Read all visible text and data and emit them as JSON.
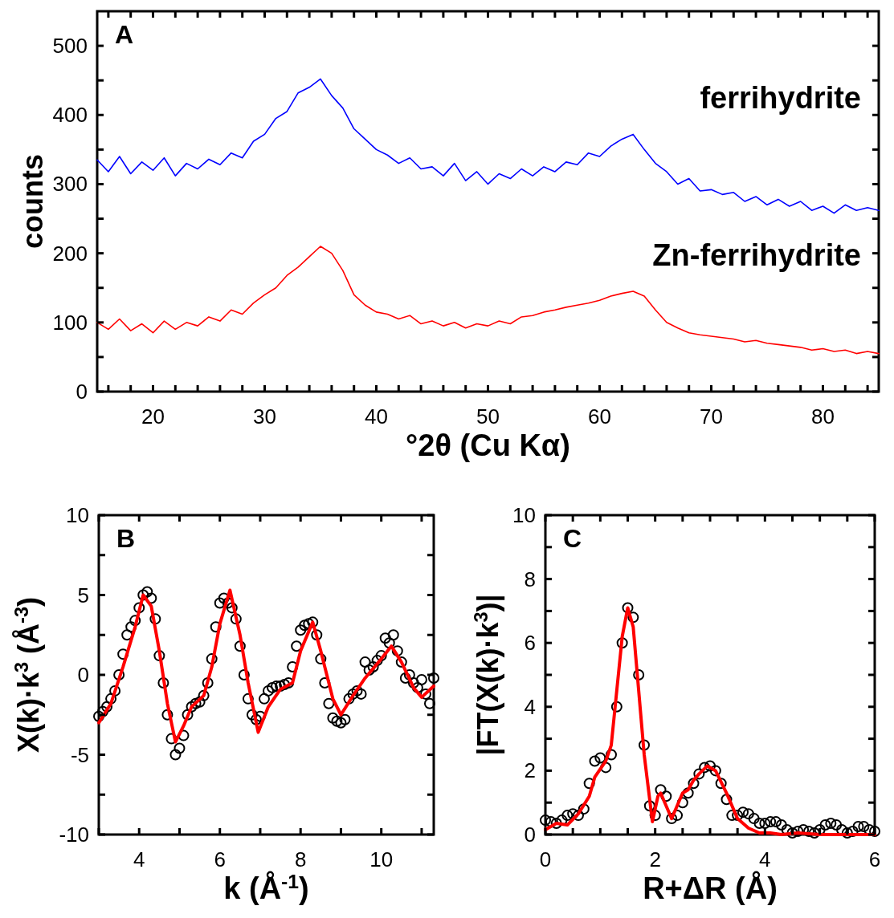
{
  "chart_data": [
    {
      "type": "line",
      "title": "A",
      "xlabel": "°2θ (Cu Kα)",
      "ylabel": "counts",
      "xlim": [
        15,
        85
      ],
      "ylim": [
        0,
        550
      ],
      "xticks": [
        {
          "value": 16,
          "label": null
        },
        {
          "value": 18,
          "label": null
        },
        20,
        {
          "value": 22,
          "label": null
        },
        {
          "value": 24,
          "label": null
        },
        {
          "value": 26,
          "label": null
        },
        {
          "value": 28,
          "label": null
        },
        30,
        {
          "value": 32,
          "label": null
        },
        {
          "value": 34,
          "label": null
        },
        {
          "value": 36,
          "label": null
        },
        {
          "value": 38,
          "label": null
        },
        40,
        {
          "value": 42,
          "label": null
        },
        {
          "value": 44,
          "label": null
        },
        {
          "value": 46,
          "label": null
        },
        {
          "value": 48,
          "label": null
        },
        50,
        {
          "value": 52,
          "label": null
        },
        {
          "value": 54,
          "label": null
        },
        {
          "value": 56,
          "label": null
        },
        {
          "value": 58,
          "label": null
        },
        60,
        {
          "value": 62,
          "label": null
        },
        {
          "value": 64,
          "label": null
        },
        {
          "value": 66,
          "label": null
        },
        {
          "value": 68,
          "label": null
        },
        70,
        {
          "value": 72,
          "label": null
        },
        {
          "value": 74,
          "label": null
        },
        {
          "value": 76,
          "label": null
        },
        {
          "value": 78,
          "label": null
        },
        80,
        {
          "value": 82,
          "label": null
        },
        {
          "value": 84,
          "label": null
        }
      ],
      "yticks": [
        0,
        {
          "value": 50,
          "label": null
        },
        100,
        {
          "value": 150,
          "label": null
        },
        200,
        {
          "value": 250,
          "label": null
        },
        300,
        {
          "value": 350,
          "label": null
        },
        400,
        {
          "value": 450,
          "label": null
        },
        500
      ],
      "x": [
        15,
        16,
        17,
        18,
        19,
        20,
        21,
        22,
        23,
        24,
        25,
        26,
        27,
        28,
        29,
        30,
        31,
        32,
        33,
        34,
        35,
        36,
        37,
        38,
        39,
        40,
        41,
        42,
        43,
        44,
        45,
        46,
        47,
        48,
        49,
        50,
        51,
        52,
        53,
        54,
        55,
        56,
        57,
        58,
        59,
        60,
        61,
        62,
        63,
        64,
        65,
        66,
        67,
        68,
        69,
        70,
        71,
        72,
        73,
        74,
        75,
        76,
        77,
        78,
        79,
        80,
        81,
        82,
        83,
        84,
        85
      ],
      "series": [
        {
          "name": "ferrihydrite",
          "color": "#0000ff",
          "values": [
            335,
            318,
            340,
            315,
            332,
            320,
            338,
            312,
            330,
            322,
            336,
            328,
            345,
            338,
            362,
            372,
            395,
            405,
            432,
            440,
            452,
            428,
            410,
            380,
            365,
            350,
            342,
            330,
            338,
            322,
            325,
            312,
            330,
            305,
            318,
            300,
            315,
            308,
            322,
            312,
            325,
            318,
            332,
            328,
            345,
            340,
            355,
            365,
            372,
            350,
            330,
            318,
            300,
            308,
            290,
            292,
            285,
            288,
            275,
            282,
            270,
            278,
            268,
            275,
            262,
            268,
            258,
            270,
            262,
            266,
            262
          ]
        },
        {
          "name": "Zn-ferrihydrite",
          "color": "#ff0000",
          "values": [
            100,
            90,
            105,
            88,
            98,
            85,
            102,
            90,
            100,
            95,
            108,
            102,
            118,
            112,
            128,
            140,
            150,
            168,
            180,
            195,
            210,
            200,
            175,
            140,
            125,
            115,
            112,
            105,
            110,
            98,
            102,
            95,
            100,
            92,
            98,
            95,
            102,
            98,
            108,
            110,
            115,
            118,
            122,
            125,
            128,
            132,
            138,
            142,
            145,
            138,
            118,
            100,
            92,
            85,
            82,
            80,
            78,
            76,
            72,
            74,
            70,
            68,
            66,
            64,
            60,
            62,
            58,
            60,
            55,
            58,
            55
          ]
        }
      ]
    },
    {
      "type": "scatter",
      "title": "B",
      "xlabel": "k (Å$^{-1}$)",
      "ylabel": "X(k)·k$^{3}$ (Å$^{-3}$)",
      "xlim": [
        3,
        11.3
      ],
      "ylim": [
        -10,
        10
      ],
      "xticks": [
        {
          "value": 3,
          "label": null
        },
        4,
        {
          "value": 5,
          "label": null
        },
        6,
        {
          "value": 7,
          "label": null
        },
        8,
        {
          "value": 9,
          "label": null
        },
        10,
        {
          "value": 11,
          "label": null
        }
      ],
      "yticks": [
        -10,
        {
          "value": -7.5,
          "label": null
        },
        -5,
        {
          "value": -2.5,
          "label": null
        },
        0,
        {
          "value": 2.5,
          "label": null
        },
        5,
        {
          "value": 7.5,
          "label": null
        },
        10
      ],
      "series": [
        {
          "color": "#000000",
          "marker": "circle",
          "x": [
            3.0,
            3.1,
            3.2,
            3.3,
            3.4,
            3.5,
            3.6,
            3.7,
            3.8,
            3.9,
            4.0,
            4.1,
            4.2,
            4.3,
            4.4,
            4.5,
            4.6,
            4.7,
            4.8,
            4.9,
            5.0,
            5.1,
            5.2,
            5.3,
            5.4,
            5.5,
            5.6,
            5.7,
            5.8,
            5.9,
            6.0,
            6.1,
            6.2,
            6.3,
            6.4,
            6.5,
            6.6,
            6.7,
            6.8,
            6.9,
            7.0,
            7.1,
            7.2,
            7.3,
            7.4,
            7.5,
            7.6,
            7.7,
            7.8,
            7.9,
            8.0,
            8.1,
            8.2,
            8.3,
            8.4,
            8.5,
            8.6,
            8.7,
            8.8,
            8.9,
            9.0,
            9.1,
            9.2,
            9.3,
            9.4,
            9.5,
            9.6,
            9.7,
            9.8,
            9.9,
            10.0,
            10.1,
            10.2,
            10.3,
            10.4,
            10.5,
            10.6,
            10.7,
            10.8,
            10.9,
            11.0,
            11.1,
            11.2,
            11.3
          ],
          "values": [
            -2.6,
            -2.3,
            -2.0,
            -1.5,
            -1.0,
            0.0,
            1.3,
            2.5,
            3.0,
            3.4,
            4.2,
            5.0,
            5.2,
            4.8,
            3.5,
            1.2,
            -0.5,
            -2.5,
            -4.0,
            -5.0,
            -4.6,
            -3.8,
            -2.5,
            -2.0,
            -1.8,
            -1.7,
            -1.3,
            -0.5,
            1.0,
            3.0,
            4.5,
            4.8,
            4.5,
            4.2,
            3.5,
            1.8,
            0.0,
            -1.5,
            -2.5,
            -2.8,
            -2.6,
            -1.5,
            -1.0,
            -0.8,
            -0.7,
            -0.7,
            -0.6,
            -0.5,
            0.5,
            1.8,
            2.8,
            3.1,
            3.2,
            3.3,
            2.5,
            1.0,
            -0.5,
            -1.8,
            -2.7,
            -2.9,
            -3.0,
            -2.8,
            -1.5,
            -1.2,
            -1.0,
            -1.2,
            0.8,
            0.3,
            0.5,
            0.9,
            1.2,
            2.3,
            2.0,
            2.5,
            1.5,
            0.8,
            -0.2,
            0.0,
            -0.5,
            -0.8,
            -0.3,
            -1.2,
            -1.8,
            -0.2
          ]
        },
        {
          "type": "line",
          "color": "#ff0000",
          "x": [
            3.0,
            3.3,
            3.6,
            3.9,
            4.1,
            4.3,
            4.5,
            4.7,
            4.9,
            5.1,
            5.3,
            5.6,
            5.8,
            6.0,
            6.25,
            6.5,
            6.7,
            6.95,
            7.2,
            7.5,
            7.8,
            8.0,
            8.3,
            8.5,
            8.8,
            9.0,
            9.3,
            9.6,
            10.0,
            10.25,
            10.5,
            10.8,
            11.0,
            11.3
          ],
          "values": [
            -3.0,
            -1.8,
            0.5,
            3.0,
            5.0,
            4.3,
            1.5,
            -1.8,
            -4.2,
            -3.2,
            -2.0,
            -1.3,
            0.5,
            3.2,
            5.3,
            2.5,
            -0.5,
            -3.6,
            -2.0,
            -0.9,
            -0.5,
            1.5,
            3.3,
            1.5,
            -1.5,
            -2.5,
            -1.3,
            -0.2,
            1.0,
            1.8,
            0.8,
            -0.8,
            -1.4,
            -0.7
          ]
        }
      ]
    },
    {
      "type": "scatter",
      "title": "C",
      "xlabel": "R+ΔR (Å)",
      "ylabel": "|FT(X(k)·k$^{3}$)|",
      "xlim": [
        0,
        6
      ],
      "ylim": [
        0,
        10
      ],
      "xticks": [
        0,
        {
          "value": 0.5,
          "label": null
        },
        {
          "value": 1,
          "label": null
        },
        {
          "value": 1.5,
          "label": null
        },
        2,
        {
          "value": 2.5,
          "label": null
        },
        {
          "value": 3,
          "label": null
        },
        {
          "value": 3.5,
          "label": null
        },
        4,
        {
          "value": 4.5,
          "label": null
        },
        {
          "value": 5,
          "label": null
        },
        {
          "value": 5.5,
          "label": null
        },
        6
      ],
      "yticks": [
        0,
        {
          "value": 1,
          "label": null
        },
        2,
        {
          "value": 3,
          "label": null
        },
        4,
        {
          "value": 5,
          "label": null
        },
        6,
        {
          "value": 7,
          "label": null
        },
        8,
        {
          "value": 9,
          "label": null
        },
        10
      ],
      "series": [
        {
          "color": "#000000",
          "marker": "circle",
          "x": [
            0,
            0.1,
            0.2,
            0.3,
            0.4,
            0.5,
            0.6,
            0.7,
            0.8,
            0.9,
            1.0,
            1.1,
            1.2,
            1.3,
            1.4,
            1.5,
            1.6,
            1.7,
            1.8,
            1.9,
            2.0,
            2.1,
            2.2,
            2.3,
            2.4,
            2.5,
            2.6,
            2.7,
            2.8,
            2.9,
            3.0,
            3.1,
            3.2,
            3.3,
            3.4,
            3.5,
            3.6,
            3.7,
            3.8,
            3.9,
            4.0,
            4.1,
            4.2,
            4.3,
            4.4,
            4.5,
            4.6,
            4.7,
            4.8,
            4.9,
            5.0,
            5.1,
            5.2,
            5.3,
            5.4,
            5.5,
            5.6,
            5.7,
            5.8,
            5.9,
            6.0
          ],
          "values": [
            0.45,
            0.4,
            0.35,
            0.45,
            0.6,
            0.65,
            0.6,
            0.8,
            1.6,
            2.3,
            2.4,
            2.1,
            2.5,
            4.0,
            6.0,
            7.1,
            6.8,
            5.0,
            2.8,
            0.9,
            0.6,
            1.4,
            1.2,
            0.5,
            0.6,
            1.0,
            1.3,
            1.6,
            1.9,
            2.1,
            2.15,
            2.0,
            1.6,
            1.1,
            0.6,
            0.6,
            0.7,
            0.65,
            0.5,
            0.35,
            0.35,
            0.4,
            0.4,
            0.3,
            0.15,
            0.05,
            0.1,
            0.15,
            0.1,
            0.05,
            0.15,
            0.3,
            0.35,
            0.3,
            0.15,
            0.05,
            0.1,
            0.25,
            0.25,
            0.15,
            0.1
          ]
        },
        {
          "type": "line",
          "color": "#ff0000",
          "x": [
            0,
            0.2,
            0.4,
            0.6,
            0.8,
            0.9,
            1.1,
            1.2,
            1.3,
            1.4,
            1.5,
            1.6,
            1.7,
            1.8,
            1.95,
            2.05,
            2.1,
            2.2,
            2.3,
            2.4,
            2.5,
            2.6,
            2.7,
            2.8,
            2.95,
            3.1,
            3.3,
            3.5,
            3.7,
            3.9,
            4.1,
            4.3,
            4.6,
            5.0,
            5.5,
            6.0
          ],
          "values": [
            0.15,
            0.35,
            0.3,
            0.65,
            1.2,
            1.8,
            2.3,
            2.8,
            4.5,
            6.2,
            7.1,
            6.5,
            4.5,
            2.5,
            0.4,
            1.2,
            1.3,
            0.9,
            0.5,
            0.9,
            1.3,
            1.4,
            1.7,
            1.9,
            2.15,
            2.0,
            1.3,
            0.5,
            0.2,
            0.05,
            0.05,
            0.0,
            0.05,
            0.0,
            0.0,
            0.0
          ]
        }
      ]
    }
  ]
}
